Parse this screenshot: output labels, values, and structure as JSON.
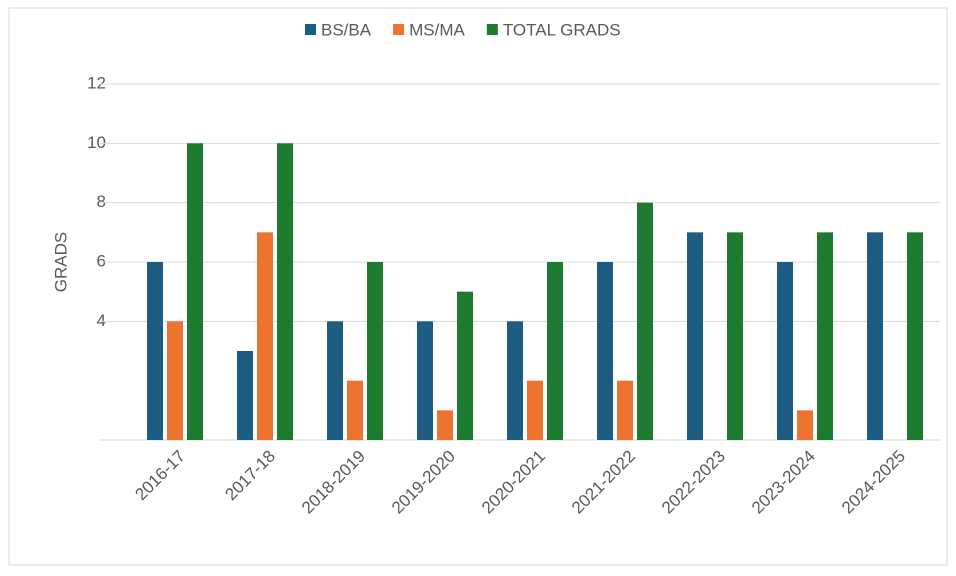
{
  "chart_data": {
    "type": "bar",
    "categories": [
      "2016-17",
      "2017-18",
      "2018-2019",
      "2019-2020",
      "2020-2021",
      "2021-2022",
      "2022-2023",
      "2023-2024",
      "2024-2025"
    ],
    "series": [
      {
        "name": "BS/BA",
        "color": "#1f5c82",
        "values": [
          6,
          3,
          4,
          4,
          4,
          6,
          7,
          6,
          7
        ]
      },
      {
        "name": "MS/MA",
        "color": "#ed7330",
        "values": [
          4,
          7,
          2,
          1,
          2,
          2,
          null,
          1,
          null
        ]
      },
      {
        "name": "TOTAL GRADS",
        "color": "#1e7a2e",
        "values": [
          10,
          10,
          6,
          5,
          6,
          8,
          7,
          7,
          7
        ]
      }
    ],
    "y_axis_label": "GRADS",
    "ylim": [
      0,
      12
    ],
    "yticks": [
      4,
      6,
      8,
      10,
      12
    ],
    "grid": true,
    "legend": "top"
  }
}
